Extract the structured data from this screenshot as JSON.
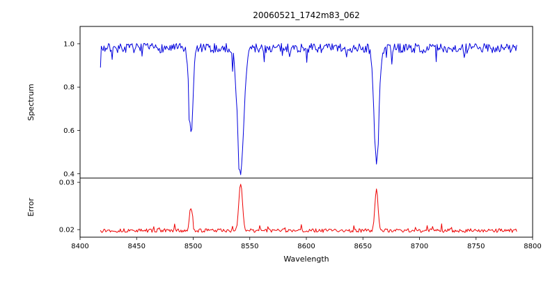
{
  "figure": {
    "background": "#ffffff",
    "frame_color": "#000000"
  },
  "chart_data": {
    "type": "line",
    "title": "20060521_1742m83_062",
    "xlabel": "Wavelength",
    "xlim": [
      8400,
      8800
    ],
    "x_ticks": [
      8400,
      8450,
      8500,
      8550,
      8600,
      8650,
      8700,
      8750,
      8800
    ],
    "x_data_range": [
      8418,
      8786
    ],
    "grid": false,
    "legend": "none",
    "panels": [
      {
        "name": "spectrum",
        "ylabel": "Spectrum",
        "color": "#0000dd",
        "ylim": [
          0.38,
          1.08
        ],
        "y_ticks": [
          0.4,
          0.6,
          0.8,
          1.0
        ],
        "y_tick_labels": [
          "0.4",
          "0.6",
          "0.8",
          "1.0"
        ],
        "baseline": 0.98,
        "noise_amplitude": 0.022,
        "feature_kind": "absorption",
        "features": [
          {
            "center": 8498,
            "depth": 0.4,
            "sigma": 1.8
          },
          {
            "center": 8542,
            "depth": 0.575,
            "sigma": 2.8
          },
          {
            "center": 8662,
            "depth": 0.53,
            "sigma": 2.2
          }
        ]
      },
      {
        "name": "error",
        "ylabel": "Error",
        "color": "#ee0000",
        "ylim": [
          0.0184,
          0.0309
        ],
        "y_ticks": [
          0.02,
          0.03
        ],
        "y_tick_labels": [
          "0.02",
          "0.03"
        ],
        "baseline": 0.0198,
        "noise_amplitude": 0.0004,
        "feature_kind": "emission",
        "features": [
          {
            "center": 8498,
            "height": 0.005,
            "sigma": 1.2
          },
          {
            "center": 8542,
            "height": 0.0098,
            "sigma": 1.6
          },
          {
            "center": 8662,
            "height": 0.0086,
            "sigma": 1.4
          }
        ]
      }
    ]
  }
}
